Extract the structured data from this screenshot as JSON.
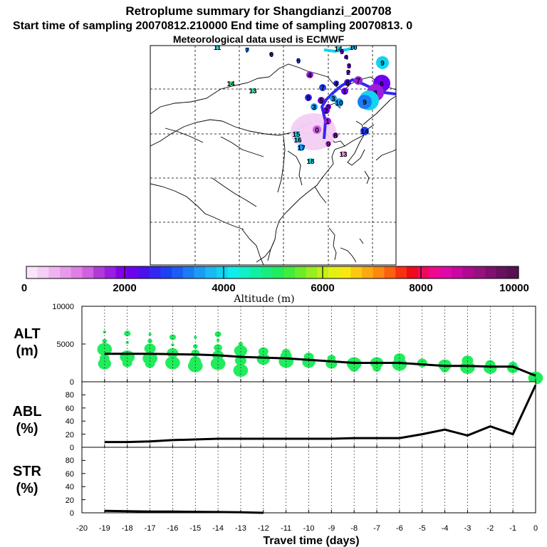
{
  "title": {
    "line1": "Retroplume summary for Shangdianzi_200708",
    "line2": "Start time of sampling 20070812.210000     End time of sampling 20070813.     0",
    "line3": "Meteorological data used is ECMWF"
  },
  "colorbar": {
    "label": "Altitude (m)",
    "tick_labels": [
      "0",
      "2000",
      "4000",
      "6000",
      "8000",
      "10000"
    ],
    "colors": [
      "#fbe4fb",
      "#f4cef4",
      "#efb4f0",
      "#e89aea",
      "#df7ee4",
      "#d060e0",
      "#b03ad8",
      "#9a1ee0",
      "#8400e8",
      "#6e00f0",
      "#4b10ee",
      "#3228f2",
      "#2040f4",
      "#1a5cf4",
      "#1a7cf4",
      "#1a9cf4",
      "#1ab8f4",
      "#10d4f0",
      "#10ecec",
      "#10f0c8",
      "#10f0a4",
      "#18ee80",
      "#20ec5c",
      "#40ec3c",
      "#6cec28",
      "#98ee20",
      "#c2f018",
      "#e4f014",
      "#f8e810",
      "#fcc810",
      "#fca810",
      "#fc8810",
      "#fc6010",
      "#f83010",
      "#f00a1a",
      "#f0085c",
      "#f00890",
      "#e008a8",
      "#c808a0",
      "#b00890",
      "#981080",
      "#801070",
      "#681060",
      "#581050"
    ]
  },
  "map": {
    "markers": [
      {
        "label": "11",
        "color": "#10d4f0"
      },
      {
        "label": "7",
        "color": "#1a7cf4"
      },
      {
        "label": "6",
        "color": "#6e00f0"
      },
      {
        "label": "5",
        "color": "#2040f4"
      },
      {
        "label": "14",
        "color": "#10d4f0"
      },
      {
        "label": "10",
        "color": "#1a9cf4"
      },
      {
        "label": "9",
        "color": "#10d4f0"
      },
      {
        "label": "14",
        "color": "#20ec5c"
      },
      {
        "label": "13",
        "color": "#10f0a4"
      },
      {
        "label": "4",
        "color": "#9a1ee0"
      },
      {
        "label": "4",
        "color": "#3228f2"
      },
      {
        "label": "8",
        "color": "#4b10ee"
      },
      {
        "label": "7",
        "color": "#9a1ee0"
      },
      {
        "label": "6",
        "color": "#6e00f0"
      },
      {
        "label": "8",
        "color": "#9a1ee0"
      },
      {
        "label": "4",
        "color": "#10d4f0"
      },
      {
        "label": "9",
        "color": "#3228f2"
      },
      {
        "label": "7",
        "color": "#2040f4"
      },
      {
        "label": "5",
        "color": "#6e00f0"
      },
      {
        "label": "3",
        "color": "#1a9cf4"
      },
      {
        "label": "10",
        "color": "#1a9cf4"
      },
      {
        "label": "9",
        "color": "#1a7cf4"
      },
      {
        "label": "6",
        "color": "#6e00f0"
      },
      {
        "label": "3",
        "color": "#1a9cf4"
      },
      {
        "label": "2",
        "color": "#6e00f0"
      },
      {
        "label": "1",
        "color": "#9a1ee0"
      },
      {
        "label": "0",
        "color": "#d060e0"
      },
      {
        "label": "8",
        "color": "#9a1ee0"
      },
      {
        "label": "14",
        "color": "#2040f4"
      },
      {
        "label": "15",
        "color": "#10d4f0"
      },
      {
        "label": "16",
        "color": "#10d4f0"
      },
      {
        "label": "17",
        "color": "#1a9cf4"
      },
      {
        "label": "9",
        "color": "#b03ad8"
      },
      {
        "label": "13",
        "color": "#e89aea"
      },
      {
        "label": "18",
        "color": "#10ecec"
      },
      {
        "label": "1",
        "color": "#6e00f0"
      },
      {
        "label": "2",
        "color": "#6e00f0"
      },
      {
        "label": "3",
        "color": "#6e00f0"
      },
      {
        "label": "4",
        "color": "#6e00f0"
      },
      {
        "label": "5",
        "color": "#6e00f0"
      }
    ]
  },
  "chart_data": [
    {
      "type": "scatter+line",
      "title": "ALT (m)",
      "ylabel_line1": "ALT",
      "ylabel_line2": "(m)",
      "xlim": [
        -20,
        0
      ],
      "ylim": [
        0,
        10000
      ],
      "ytick_labels": [
        "0",
        "5000",
        "10000"
      ],
      "mean_line": {
        "x": [
          -19,
          -18,
          -17,
          -16,
          -15,
          -14,
          -13,
          -12,
          -11,
          -10,
          -9,
          -8,
          -7,
          -6,
          -5,
          -4,
          -3,
          -2,
          -1,
          0
        ],
        "y": [
          3700,
          3700,
          3700,
          3650,
          3600,
          3500,
          3300,
          3200,
          3100,
          2900,
          2700,
          2500,
          2500,
          2500,
          2300,
          2100,
          2100,
          2000,
          2000,
          800
        ]
      },
      "points": [
        {
          "x": -19,
          "y": 6600
        },
        {
          "x": -19,
          "y": 5400
        },
        {
          "x": -19,
          "y": 4300
        },
        {
          "x": -19,
          "y": 3100
        },
        {
          "x": -19,
          "y": 2400
        },
        {
          "x": -18,
          "y": 6400
        },
        {
          "x": -18,
          "y": 5200
        },
        {
          "x": -18,
          "y": 3300
        },
        {
          "x": -18,
          "y": 2500
        },
        {
          "x": -17,
          "y": 6300
        },
        {
          "x": -17,
          "y": 5400
        },
        {
          "x": -17,
          "y": 4400
        },
        {
          "x": -17,
          "y": 3100
        },
        {
          "x": -17,
          "y": 2400
        },
        {
          "x": -16,
          "y": 5900
        },
        {
          "x": -16,
          "y": 4900
        },
        {
          "x": -16,
          "y": 3800
        },
        {
          "x": -16,
          "y": 2500
        },
        {
          "x": -15,
          "y": 5900
        },
        {
          "x": -15,
          "y": 4700
        },
        {
          "x": -15,
          "y": 3800
        },
        {
          "x": -15,
          "y": 2700
        },
        {
          "x": -15,
          "y": 2100
        },
        {
          "x": -14,
          "y": 6300
        },
        {
          "x": -14,
          "y": 5500
        },
        {
          "x": -14,
          "y": 4500
        },
        {
          "x": -14,
          "y": 3500
        },
        {
          "x": -14,
          "y": 2400
        },
        {
          "x": -13,
          "y": 5000
        },
        {
          "x": -13,
          "y": 4100
        },
        {
          "x": -13,
          "y": 3200
        },
        {
          "x": -13,
          "y": 2800
        },
        {
          "x": -13,
          "y": 1500
        },
        {
          "x": -12,
          "y": 4000
        },
        {
          "x": -12,
          "y": 3000
        },
        {
          "x": -11,
          "y": 3900
        },
        {
          "x": -11,
          "y": 3400
        },
        {
          "x": -11,
          "y": 2700
        },
        {
          "x": -10,
          "y": 3300
        },
        {
          "x": -10,
          "y": 2600
        },
        {
          "x": -9,
          "y": 3100
        },
        {
          "x": -9,
          "y": 2400
        },
        {
          "x": -8,
          "y": 2400
        },
        {
          "x": -8,
          "y": 1900
        },
        {
          "x": -7,
          "y": 2500
        },
        {
          "x": -7,
          "y": 1800
        },
        {
          "x": -6,
          "y": 3100
        },
        {
          "x": -6,
          "y": 2300
        },
        {
          "x": -5,
          "y": 2500
        },
        {
          "x": -4,
          "y": 2200
        },
        {
          "x": -4,
          "y": 1700
        },
        {
          "x": -3,
          "y": 2800
        },
        {
          "x": -3,
          "y": 1900
        },
        {
          "x": -2,
          "y": 2300
        },
        {
          "x": -2,
          "y": 1800
        },
        {
          "x": -1,
          "y": 2200
        },
        {
          "x": -1,
          "y": 1800
        },
        {
          "x": 0,
          "y": 500
        }
      ]
    },
    {
      "type": "line",
      "title": "ABL (%)",
      "ylabel_line1": "ABL",
      "ylabel_line2": "(%)",
      "xlim": [
        -20,
        0
      ],
      "ylim": [
        0,
        100
      ],
      "ytick_labels": [
        "0",
        "20",
        "40",
        "60",
        "80"
      ],
      "x": [
        -19,
        -18,
        -17,
        -16,
        -15,
        -14,
        -13,
        -12,
        -11,
        -10,
        -9,
        -8,
        -7,
        -6,
        -5,
        -4,
        -3,
        -2,
        -1,
        0
      ],
      "y": [
        8,
        8,
        9,
        11,
        12,
        13,
        13,
        13,
        13,
        13,
        13,
        14,
        14,
        14,
        20,
        27,
        18,
        32,
        20,
        95
      ]
    },
    {
      "type": "line",
      "title": "STR (%)",
      "ylabel_line1": "STR",
      "ylabel_line2": "(%)",
      "xlim": [
        -20,
        0
      ],
      "ylim": [
        0,
        100
      ],
      "ytick_labels": [
        "0",
        "20",
        "40",
        "60",
        "80"
      ],
      "x": [
        -19,
        -18,
        -17,
        -16,
        -15,
        -14,
        -13,
        -12
      ],
      "y": [
        3,
        2.5,
        2,
        1.8,
        1.5,
        1.2,
        0.8,
        0
      ],
      "xlabel": "Travel time (days)",
      "xtick_labels": [
        "-20",
        "-19",
        "-18",
        "-17",
        "-16",
        "-15",
        "-14",
        "-13",
        "-12",
        "-11",
        "-10",
        "-9",
        "-8",
        "-7",
        "-6",
        "-5",
        "-4",
        "-3",
        "-2",
        "-1",
        "0"
      ]
    }
  ]
}
